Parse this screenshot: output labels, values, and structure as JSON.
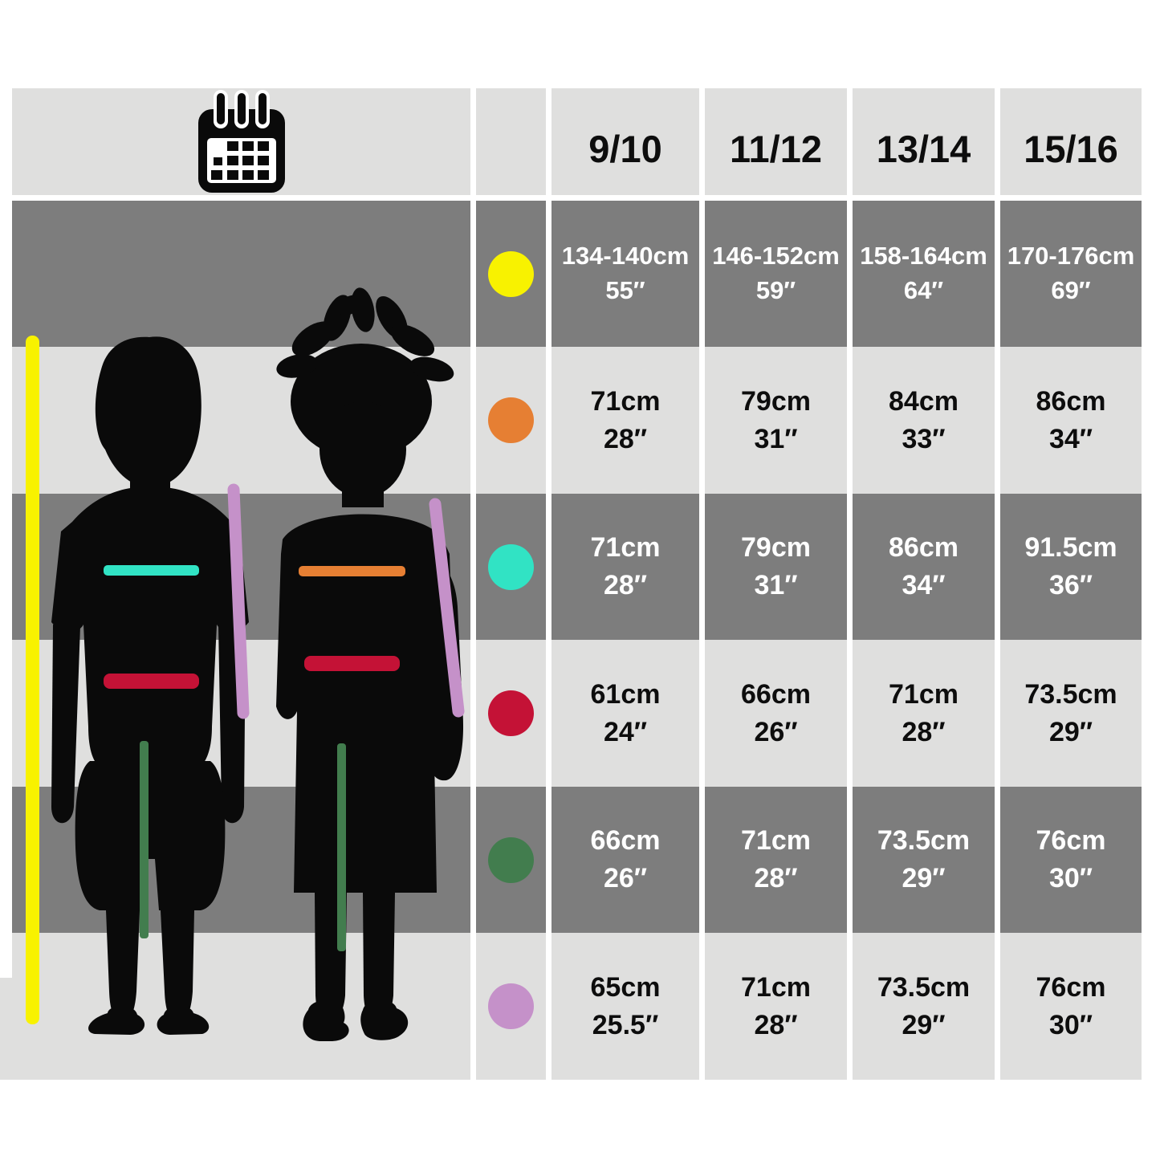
{
  "page": {
    "background": "#ffffff"
  },
  "header": {
    "icon": "calendar-icon",
    "sizes": [
      "9/10",
      "11/12",
      "13/14",
      "15/16"
    ]
  },
  "chart_data": {
    "type": "table",
    "columns": [
      "9/10",
      "11/12",
      "13/14",
      "15/16"
    ],
    "rows": [
      {
        "dot": "yellow",
        "line": "height",
        "cells": [
          [
            "134-140cm",
            "55″"
          ],
          [
            "146-152cm",
            "59″"
          ],
          [
            "158-164cm",
            "64″"
          ],
          [
            "170-176cm",
            "69″"
          ]
        ]
      },
      {
        "dot": "orange",
        "line": "chest-girl",
        "cells": [
          [
            "71cm",
            "28″"
          ],
          [
            "79cm",
            "31″"
          ],
          [
            "84cm",
            "33″"
          ],
          [
            "86cm",
            "34″"
          ]
        ]
      },
      {
        "dot": "teal",
        "line": "chest-boy",
        "cells": [
          [
            "71cm",
            "28″"
          ],
          [
            "79cm",
            "31″"
          ],
          [
            "86cm",
            "34″"
          ],
          [
            "91.5cm",
            "36″"
          ]
        ]
      },
      {
        "dot": "red",
        "line": "hip",
        "cells": [
          [
            "61cm",
            "24″"
          ],
          [
            "66cm",
            "26″"
          ],
          [
            "71cm",
            "28″"
          ],
          [
            "73.5cm",
            "29″"
          ]
        ]
      },
      {
        "dot": "green",
        "line": "inseam",
        "cells": [
          [
            "66cm",
            "26″"
          ],
          [
            "71cm",
            "28″"
          ],
          [
            "73.5cm",
            "29″"
          ],
          [
            "76cm",
            "30″"
          ]
        ]
      },
      {
        "dot": "purple",
        "line": "sleeve",
        "cells": [
          [
            "65cm",
            "25.5″"
          ],
          [
            "71cm",
            "28″"
          ],
          [
            "73.5cm",
            "29″"
          ],
          [
            "76cm",
            "30″"
          ]
        ]
      }
    ]
  },
  "colors": {
    "page": "#ffffff",
    "row_dark": "#7d7d7d",
    "row_light": "#dfdfde",
    "text_on_dark": "#ffffff",
    "text_on_light": "#0d0d0d",
    "silhouette": "#0a0a0a",
    "icon": "#0a0a0a",
    "dots": {
      "yellow": "#f8f200",
      "orange": "#e67f33",
      "teal": "#31e3c4",
      "red": "#c41236",
      "green": "#427d4e",
      "purple": "#c591c9"
    }
  }
}
